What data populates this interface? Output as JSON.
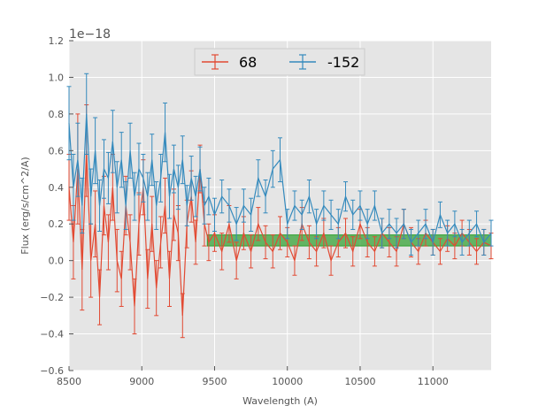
{
  "chart_data": {
    "type": "line",
    "title": "",
    "xlabel": "Wavelength (A)",
    "ylabel": "Flux (erg/s/cm^2/A)",
    "offset_text": "1e−18",
    "xlim": [
      8500,
      11400
    ],
    "ylim": [
      -0.6,
      1.2
    ],
    "y_scale": "1e-18",
    "grid": true,
    "legend_position": "top-center",
    "x_ticks": [
      8500,
      9000,
      9500,
      10000,
      10500,
      11000
    ],
    "y_ticks": [
      -0.6,
      -0.4,
      -0.2,
      0.0,
      0.2,
      0.4,
      0.6,
      0.8,
      1.0,
      1.2
    ],
    "x_tick_labels": [
      "8500",
      "9000",
      "9500",
      "10000",
      "10500",
      "11000"
    ],
    "y_tick_labels": [
      "−0.6",
      "−0.4",
      "−0.2",
      "0.0",
      "0.2",
      "0.4",
      "0.6",
      "0.8",
      "1.0",
      "1.2"
    ],
    "series": [
      {
        "name": "68",
        "color": "#E24A33",
        "x": [
          8500,
          8530,
          8560,
          8590,
          8620,
          8650,
          8680,
          8710,
          8740,
          8770,
          8800,
          8830,
          8860,
          8890,
          8920,
          8950,
          8980,
          9010,
          9040,
          9070,
          9100,
          9130,
          9160,
          9190,
          9220,
          9250,
          9280,
          9310,
          9340,
          9370,
          9400,
          9430,
          9460,
          9500,
          9550,
          9600,
          9650,
          9700,
          9750,
          9800,
          9850,
          9900,
          9950,
          10000,
          10050,
          10100,
          10150,
          10200,
          10250,
          10300,
          10350,
          10400,
          10450,
          10500,
          10550,
          10600,
          10650,
          10700,
          10750,
          10800,
          10850,
          10900,
          10950,
          11000,
          11050,
          11100,
          11150,
          11200,
          11250,
          11300,
          11350,
          11400
        ],
        "y": [
          0.4,
          0.1,
          0.5,
          -0.05,
          0.6,
          0.0,
          0.2,
          -0.2,
          0.3,
          0.1,
          0.4,
          0.0,
          -0.1,
          0.3,
          0.1,
          -0.25,
          0.2,
          0.4,
          -0.1,
          0.2,
          -0.15,
          0.1,
          0.3,
          -0.1,
          0.25,
          0.15,
          -0.3,
          0.2,
          0.35,
          0.1,
          0.5,
          0.2,
          0.1,
          0.15,
          0.05,
          0.2,
          0.0,
          0.15,
          0.05,
          0.2,
          0.1,
          0.05,
          0.15,
          0.1,
          0.0,
          0.2,
          0.1,
          0.05,
          0.15,
          0.0,
          0.1,
          0.15,
          0.05,
          0.2,
          0.1,
          0.05,
          0.15,
          0.1,
          0.05,
          0.2,
          0.1,
          0.05,
          0.15,
          0.1,
          0.05,
          0.12,
          0.08,
          0.15,
          0.1,
          0.05,
          0.1,
          0.08
        ],
        "yerr": [
          0.18,
          0.2,
          0.3,
          0.22,
          0.25,
          0.2,
          0.18,
          0.15,
          0.16,
          0.15,
          0.18,
          0.17,
          0.15,
          0.16,
          0.15,
          0.15,
          0.17,
          0.15,
          0.16,
          0.15,
          0.15,
          0.14,
          0.15,
          0.15,
          0.14,
          0.15,
          0.12,
          0.13,
          0.14,
          0.12,
          0.13,
          0.12,
          0.1,
          0.1,
          0.1,
          0.1,
          0.1,
          0.09,
          0.09,
          0.09,
          0.09,
          0.09,
          0.09,
          0.08,
          0.08,
          0.09,
          0.09,
          0.08,
          0.08,
          0.08,
          0.08,
          0.08,
          0.08,
          0.08,
          0.08,
          0.08,
          0.08,
          0.08,
          0.08,
          0.08,
          0.08,
          0.07,
          0.07,
          0.07,
          0.07,
          0.07,
          0.07,
          0.07,
          0.07,
          0.07,
          0.07,
          0.07
        ]
      },
      {
        "name": "-152",
        "color": "#348ABD",
        "x": [
          8500,
          8530,
          8560,
          8590,
          8620,
          8650,
          8680,
          8710,
          8740,
          8770,
          8800,
          8830,
          8860,
          8890,
          8920,
          8950,
          8980,
          9010,
          9040,
          9070,
          9100,
          9130,
          9160,
          9190,
          9220,
          9250,
          9280,
          9310,
          9340,
          9370,
          9400,
          9430,
          9460,
          9500,
          9550,
          9600,
          9650,
          9700,
          9750,
          9800,
          9850,
          9900,
          9950,
          10000,
          10050,
          10100,
          10150,
          10200,
          10250,
          10300,
          10350,
          10400,
          10450,
          10500,
          10550,
          10600,
          10650,
          10700,
          10750,
          10800,
          10850,
          10900,
          10950,
          11000,
          11050,
          11100,
          11150,
          11200,
          11250,
          11300,
          11350,
          11400
        ],
        "y": [
          0.75,
          0.4,
          0.55,
          0.3,
          0.8,
          0.35,
          0.6,
          0.3,
          0.5,
          0.45,
          0.65,
          0.4,
          0.55,
          0.3,
          0.6,
          0.35,
          0.5,
          0.45,
          0.35,
          0.55,
          0.3,
          0.45,
          0.7,
          0.35,
          0.5,
          0.4,
          0.55,
          0.3,
          0.45,
          0.35,
          0.5,
          0.3,
          0.35,
          0.25,
          0.35,
          0.3,
          0.2,
          0.3,
          0.25,
          0.45,
          0.35,
          0.5,
          0.55,
          0.2,
          0.3,
          0.25,
          0.35,
          0.2,
          0.3,
          0.25,
          0.2,
          0.35,
          0.25,
          0.3,
          0.2,
          0.3,
          0.15,
          0.2,
          0.15,
          0.2,
          0.1,
          0.15,
          0.2,
          0.1,
          0.25,
          0.15,
          0.2,
          0.1,
          0.15,
          0.2,
          0.1,
          0.15
        ],
        "yerr": [
          0.2,
          0.18,
          0.2,
          0.15,
          0.22,
          0.15,
          0.18,
          0.14,
          0.16,
          0.14,
          0.17,
          0.14,
          0.15,
          0.13,
          0.15,
          0.13,
          0.14,
          0.13,
          0.13,
          0.14,
          0.13,
          0.13,
          0.16,
          0.12,
          0.13,
          0.12,
          0.13,
          0.11,
          0.12,
          0.11,
          0.12,
          0.1,
          0.1,
          0.09,
          0.09,
          0.09,
          0.09,
          0.09,
          0.09,
          0.1,
          0.09,
          0.1,
          0.12,
          0.08,
          0.08,
          0.08,
          0.09,
          0.08,
          0.08,
          0.08,
          0.08,
          0.08,
          0.08,
          0.08,
          0.08,
          0.08,
          0.08,
          0.08,
          0.08,
          0.08,
          0.07,
          0.07,
          0.08,
          0.07,
          0.07,
          0.07,
          0.07,
          0.07,
          0.07,
          0.07,
          0.07,
          0.07
        ]
      }
    ],
    "band": {
      "name": "continuum-band",
      "color": "#2ca02c",
      "x_range": [
        9450,
        11400
      ],
      "y_range": [
        0.08,
        0.14
      ]
    }
  }
}
